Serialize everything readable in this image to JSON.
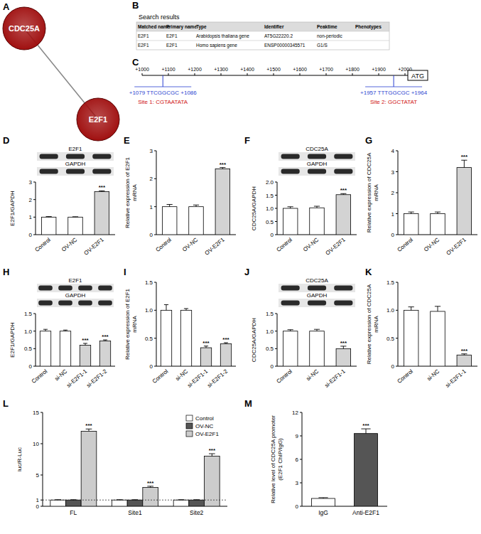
{
  "panel_labels": [
    "A",
    "B",
    "C",
    "D",
    "E",
    "F",
    "G",
    "H",
    "I",
    "J",
    "K",
    "L",
    "M"
  ],
  "network": {
    "nodes": [
      {
        "label": "CDC25A"
      },
      {
        "label": "E2F1"
      }
    ],
    "edges": [
      [
        0,
        1
      ]
    ],
    "color": "#a01010"
  },
  "search_table": {
    "title": "Search results",
    "columns": [
      "Matched name",
      "Primary name",
      "Type",
      "Identifier",
      "Peaktime",
      "Phenotypes"
    ],
    "rows": [
      [
        "E2F1",
        "E2F1",
        "Arabidopsis thaliana gene",
        "AT5G22220.2",
        "non-periodic"
      ],
      [
        "E2F1",
        "E2F1",
        "Homo sapiens gene",
        "ENSP00000345571",
        "G1/S"
      ]
    ]
  },
  "promoter": {
    "range": [
      1000,
      2000
    ],
    "ticks": [
      {
        "value": 1000,
        "label": "+1000"
      },
      {
        "value": 1100,
        "label": "+1100"
      },
      {
        "value": 1200,
        "label": "+1200"
      },
      {
        "value": 1300,
        "label": "+1300"
      },
      {
        "value": 1400,
        "label": "+1400"
      },
      {
        "value": 1500,
        "label": "+1500"
      },
      {
        "value": 1600,
        "label": "+1600"
      },
      {
        "value": 1700,
        "label": "+1700"
      },
      {
        "value": 1800,
        "label": "+1800"
      },
      {
        "value": 1900,
        "label": "+1900"
      },
      {
        "value": 2000,
        "label": "+2000"
      }
    ],
    "end_label": "ATG",
    "sites": [
      {
        "position": 1079,
        "sequence_label": "+1079 TTCGGCGC +1086",
        "site_label": "Site 1: CGTAATATA"
      },
      {
        "position": 1957,
        "sequence_label": "+1957 TTTGGCGC +1964",
        "site_label": "Site 2: GGCTATAT"
      }
    ]
  },
  "chart_data": [
    {
      "type": "bar",
      "blot_labels": [
        "E2F1",
        "GAPDH"
      ],
      "y_label": [
        "E2F1/GAPDH"
      ],
      "categories": [
        "Control",
        "OV-NC",
        "OV-E2F1"
      ],
      "values": [
        1.0,
        1.0,
        2.45
      ],
      "errors": [
        0.03,
        0.02,
        0.05
      ],
      "colors": [
        "#ffffff",
        "#ffffff",
        "#d3d3d3"
      ],
      "annotations": [
        null,
        null,
        "***"
      ],
      "ylim": [
        0,
        3
      ],
      "yticks": [
        0,
        1,
        2,
        3
      ]
    },
    {
      "type": "bar",
      "y_label": [
        "Relative expression of E2F1",
        "mRNA"
      ],
      "categories": [
        "Control",
        "OV-NC",
        "OV-E2F1"
      ],
      "values": [
        1.0,
        1.0,
        2.35
      ],
      "errors": [
        0.08,
        0.06,
        0.05
      ],
      "colors": [
        "#ffffff",
        "#ffffff",
        "#d3d3d3"
      ],
      "annotations": [
        null,
        null,
        "***"
      ],
      "ylim": [
        0,
        3
      ],
      "yticks": [
        0,
        1,
        2,
        3
      ]
    },
    {
      "type": "bar",
      "blot_labels": [
        "CDC25A",
        "GAPDH"
      ],
      "y_label": [
        "CDC25A/GAPDH"
      ],
      "categories": [
        "Control",
        "OV-NC",
        "OV-E2F1"
      ],
      "values": [
        1.0,
        1.02,
        1.52
      ],
      "errors": [
        0.06,
        0.06,
        0.04
      ],
      "colors": [
        "#ffffff",
        "#ffffff",
        "#d3d3d3"
      ],
      "annotations": [
        null,
        null,
        "***"
      ],
      "ylim": [
        0,
        2
      ],
      "yticks": [
        0,
        0.5,
        {
          "value": 1,
          "label": "1.0"
        },
        1.5,
        {
          "value": 2,
          "label": "2.0"
        }
      ]
    },
    {
      "type": "bar",
      "y_label": [
        "Relative expression of CDC25A",
        "mRNA"
      ],
      "categories": [
        "Control",
        "OV-NC",
        "OV-E2F1"
      ],
      "values": [
        1.0,
        1.0,
        3.2
      ],
      "errors": [
        0.08,
        0.08,
        0.35
      ],
      "colors": [
        "#ffffff",
        "#ffffff",
        "#d3d3d3"
      ],
      "annotations": [
        null,
        null,
        "***"
      ],
      "ylim": [
        0,
        4
      ],
      "yticks": [
        0,
        1,
        2,
        3,
        4
      ]
    },
    {
      "type": "bar",
      "blot_labels": [
        "E2F1",
        "GAPDH"
      ],
      "y_label": [
        "E2F1/GAPDH"
      ],
      "categories": [
        "Control",
        "si-NC",
        "si-E2F1-1",
        "si-E2F1-2"
      ],
      "values": [
        1.0,
        1.0,
        0.6,
        0.72
      ],
      "errors": [
        0.05,
        0.03,
        0.05,
        0.03
      ],
      "colors": [
        "#ffffff",
        "#ffffff",
        "#d3d3d3",
        "#d3d3d3"
      ],
      "annotations": [
        null,
        null,
        "***",
        "***"
      ],
      "ylim": [
        0,
        1.5
      ],
      "yticks": [
        0,
        0.5,
        {
          "value": 1,
          "label": "1.0"
        },
        1.5
      ]
    },
    {
      "type": "bar",
      "y_label": [
        "Relative expression of E2F1",
        "mRNA"
      ],
      "categories": [
        "Control",
        "si-NC",
        "si-E2F1-1",
        "si-E2F1-2"
      ],
      "values": [
        1.0,
        1.0,
        0.33,
        0.4
      ],
      "errors": [
        0.1,
        0.03,
        0.03,
        0.02
      ],
      "colors": [
        "#ffffff",
        "#ffffff",
        "#d3d3d3",
        "#d3d3d3"
      ],
      "annotations": [
        null,
        null,
        "***",
        "***"
      ],
      "ylim": [
        0,
        1.5
      ],
      "yticks": [
        0,
        0.5,
        {
          "value": 1,
          "label": "1.0"
        },
        1.5
      ]
    },
    {
      "type": "bar",
      "blot_labels": [
        "CDC25A",
        "GAPDH"
      ],
      "y_label": [
        "CDC25A/GAPDH"
      ],
      "categories": [
        "Control",
        "si-NC",
        "si-E2F1-1"
      ],
      "values": [
        1.0,
        1.0,
        0.5
      ],
      "errors": [
        0.04,
        0.05,
        0.07
      ],
      "colors": [
        "#ffffff",
        "#ffffff",
        "#d3d3d3"
      ],
      "annotations": [
        null,
        null,
        "***"
      ],
      "ylim": [
        0,
        1.5
      ],
      "yticks": [
        0,
        0.5,
        {
          "value": 1,
          "label": "1.0"
        },
        1.5
      ]
    },
    {
      "type": "bar",
      "y_label": [
        "Relative expression of CDC25A",
        "mRNA"
      ],
      "categories": [
        "Control",
        "si-NC",
        "si-E2F1-1"
      ],
      "values": [
        1.0,
        0.98,
        0.2
      ],
      "errors": [
        0.06,
        0.09,
        0.02
      ],
      "colors": [
        "#ffffff",
        "#ffffff",
        "#d3d3d3"
      ],
      "annotations": [
        null,
        null,
        "***"
      ],
      "ylim": [
        0,
        1.5
      ],
      "yticks": [
        0,
        0.5,
        {
          "value": 1,
          "label": "1.0"
        },
        1.5
      ]
    },
    {
      "type": "bar",
      "y_label": [
        "luc/R-Luc"
      ],
      "legend": "upper right",
      "categories": [
        "FL",
        "Site1",
        "Site2"
      ],
      "series": [
        {
          "name": "Control",
          "color": "#ffffff",
          "values": [
            1,
            1,
            1
          ],
          "errors": [
            0.05,
            0.05,
            0.05
          ],
          "annotations": [
            null,
            null,
            null
          ]
        },
        {
          "name": "OV-NC",
          "color": "#555555",
          "values": [
            1,
            1,
            1
          ],
          "errors": [
            0.05,
            0.05,
            0.05
          ],
          "annotations": [
            null,
            null,
            null
          ]
        },
        {
          "name": "OV-E2F1",
          "color": "#cccccc",
          "values": [
            12,
            3,
            8
          ],
          "errors": [
            0.35,
            0.2,
            0.4
          ],
          "annotations": [
            "***",
            "***",
            "***"
          ]
        }
      ],
      "reference_line": 1,
      "ylim": [
        0,
        15
      ],
      "yticks": [
        0,
        1,
        5,
        10,
        15
      ]
    },
    {
      "type": "bar",
      "y_label": [
        "Relative level of CDC25A promoter",
        "(E2F1 ChIP/IgG)"
      ],
      "categories": [
        "IgG",
        "Anti-E2F1"
      ],
      "values": [
        1.0,
        9.3
      ],
      "errors": [
        0.1,
        0.6
      ],
      "colors": [
        "#ffffff",
        "#555555"
      ],
      "annotations": [
        null,
        "***"
      ],
      "ylim": [
        0,
        12
      ],
      "yticks": [
        0,
        3,
        6,
        9,
        12
      ]
    }
  ]
}
